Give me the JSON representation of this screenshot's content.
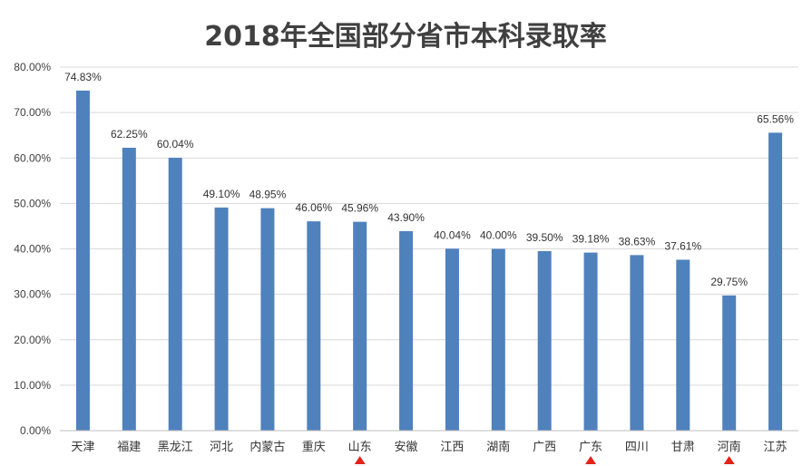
{
  "chart_data": {
    "type": "bar",
    "title": "2018年全国部分省市本科录取率",
    "xlabel": "",
    "ylabel": "",
    "ylim": [
      0,
      80
    ],
    "yticks": [
      "0.00%",
      "10.00%",
      "20.00%",
      "30.00%",
      "40.00%",
      "50.00%",
      "60.00%",
      "70.00%",
      "80.00%"
    ],
    "grid": true,
    "categories": [
      "天津",
      "福建",
      "黑龙江",
      "河北",
      "内蒙古",
      "重庆",
      "山东",
      "安徽",
      "江西",
      "湖南",
      "广西",
      "广东",
      "四川",
      "甘肃",
      "河南",
      "江苏"
    ],
    "values": [
      74.83,
      62.25,
      60.04,
      49.1,
      48.95,
      46.06,
      45.96,
      43.9,
      40.04,
      40.0,
      39.5,
      39.18,
      38.63,
      37.61,
      29.75,
      65.56
    ],
    "data_labels": [
      "74.83%",
      "62.25%",
      "60.04%",
      "49.10%",
      "48.95%",
      "46.06%",
      "45.96%",
      "43.90%",
      "40.04%",
      "40.00%",
      "39.50%",
      "39.18%",
      "38.63%",
      "37.61%",
      "29.75%",
      "65.56%"
    ],
    "highlighted_categories": [
      "山东",
      "广东",
      "河南"
    ],
    "bar_color": "#4f81bd",
    "highlight_marker_color": "#e3231b"
  }
}
